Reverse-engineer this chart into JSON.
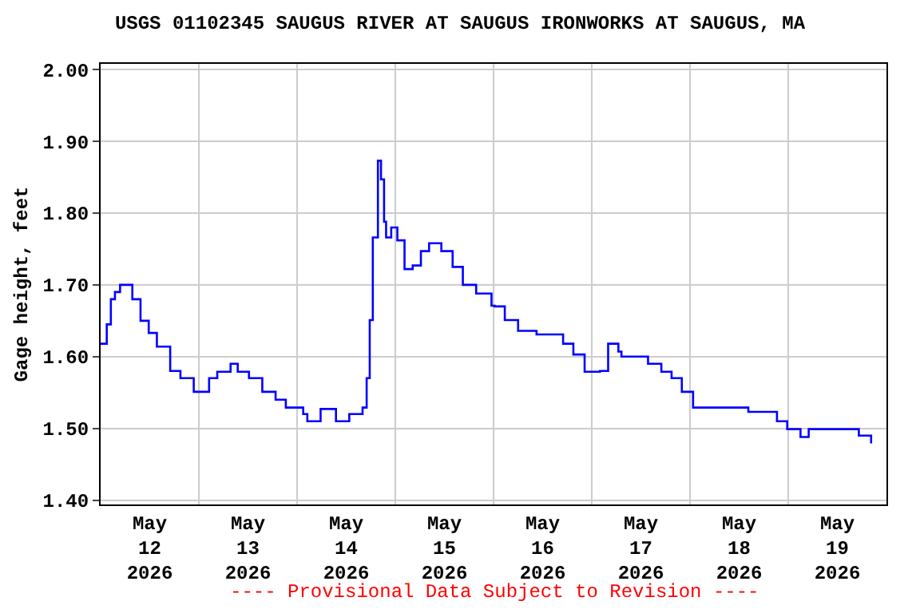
{
  "chart_data": {
    "type": "step",
    "title": "USGS 01102345 SAUGUS RIVER AT SAUGUS IRONWORKS AT SAUGUS, MA",
    "ylabel": "Gage height, feet",
    "annotations": [
      "---- Provisional Data Subject to Revision ----"
    ],
    "x": [
      "2026-05-12T00:00",
      "2026-05-12T01:30",
      "2026-05-12T02:30",
      "2026-05-12T03:30",
      "2026-05-12T04:45",
      "2026-05-12T06:15",
      "2026-05-12T07:45",
      "2026-05-12T09:45",
      "2026-05-12T11:45",
      "2026-05-12T13:45",
      "2026-05-12T17:00",
      "2026-05-12T19:30",
      "2026-05-12T22:45",
      "2026-05-13T02:30",
      "2026-05-13T04:30",
      "2026-05-13T07:45",
      "2026-05-13T09:30",
      "2026-05-13T12:15",
      "2026-05-13T15:30",
      "2026-05-13T18:45",
      "2026-05-13T21:15",
      "2026-05-14T01:30",
      "2026-05-14T02:30",
      "2026-05-14T05:45",
      "2026-05-14T09:30",
      "2026-05-14T12:45",
      "2026-05-14T16:00",
      "2026-05-14T17:00",
      "2026-05-14T17:45",
      "2026-05-14T18:30",
      "2026-05-14T19:45",
      "2026-05-14T20:30",
      "2026-05-14T21:15",
      "2026-05-14T21:45",
      "2026-05-14T23:00",
      "2026-05-15T00:30",
      "2026-05-15T02:15",
      "2026-05-15T04:15",
      "2026-05-15T06:15",
      "2026-05-15T08:15",
      "2026-05-15T11:15",
      "2026-05-15T14:00",
      "2026-05-15T16:30",
      "2026-05-15T19:45",
      "2026-05-15T23:30",
      "2026-05-16T00:15",
      "2026-05-16T02:45",
      "2026-05-16T06:00",
      "2026-05-16T10:30",
      "2026-05-16T15:00",
      "2026-05-16T17:00",
      "2026-05-16T19:30",
      "2026-05-16T22:15",
      "2026-05-17T02:00",
      "2026-05-17T04:00",
      "2026-05-17T06:30",
      "2026-05-17T07:15",
      "2026-05-17T11:00",
      "2026-05-17T13:45",
      "2026-05-17T17:00",
      "2026-05-17T19:30",
      "2026-05-17T22:00",
      "2026-05-18T00:45",
      "2026-05-18T07:45",
      "2026-05-18T14:15",
      "2026-05-18T21:15",
      "2026-05-18T23:45",
      "2026-05-19T03:00",
      "2026-05-19T05:00",
      "2026-05-19T10:15",
      "2026-05-19T15:30",
      "2026-05-19T17:15",
      "2026-05-19T20:15"
    ],
    "series": [
      {
        "color": "#0000ff",
        "values": [
          1.618,
          1.645,
          1.68,
          1.69,
          1.7,
          1.7,
          1.68,
          1.65,
          1.633,
          1.614,
          1.58,
          1.57,
          1.551,
          1.57,
          1.579,
          1.59,
          1.579,
          1.57,
          1.551,
          1.54,
          1.529,
          1.52,
          1.51,
          1.527,
          1.51,
          1.52,
          1.529,
          1.57,
          1.651,
          1.766,
          1.873,
          1.847,
          1.788,
          1.766,
          1.78,
          1.762,
          1.722,
          1.727,
          1.747,
          1.758,
          1.747,
          1.725,
          1.7,
          1.688,
          1.671,
          1.67,
          1.651,
          1.636,
          1.631,
          1.631,
          1.618,
          1.603,
          1.579,
          1.58,
          1.618,
          1.607,
          1.6,
          1.6,
          1.59,
          1.579,
          1.57,
          1.551,
          1.529,
          1.529,
          1.523,
          1.51,
          1.499,
          1.488,
          1.499,
          1.499,
          1.499,
          1.49,
          1.479
        ]
      }
    ],
    "xlim": [
      "2026-05-12T00:00",
      "2026-05-20T00:00"
    ],
    "xticks": [
      {
        "value": "2026-05-12T12:00",
        "label": "May\n12\n2026"
      },
      {
        "value": "2026-05-13T12:00",
        "label": "May\n13\n2026"
      },
      {
        "value": "2026-05-14T12:00",
        "label": "May\n14\n2026"
      },
      {
        "value": "2026-05-15T12:00",
        "label": "May\n15\n2026"
      },
      {
        "value": "2026-05-16T12:00",
        "label": "May\n16\n2026"
      },
      {
        "value": "2026-05-17T12:00",
        "label": "May\n17\n2026"
      },
      {
        "value": "2026-05-18T12:00",
        "label": "May\n18\n2026"
      },
      {
        "value": "2026-05-19T12:00",
        "label": "May\n19\n2026"
      },
      {
        "value": "2026-05-13T00:00",
        "label": null
      },
      {
        "value": "2026-05-14T00:00",
        "label": null
      },
      {
        "value": "2026-05-15T00:00",
        "label": null
      },
      {
        "value": "2026-05-16T00:00",
        "label": null
      },
      {
        "value": "2026-05-17T00:00",
        "label": null
      },
      {
        "value": "2026-05-18T00:00",
        "label": null
      },
      {
        "value": "2026-05-19T00:00",
        "label": null
      }
    ],
    "ylim": [
      1.394,
      2.008
    ],
    "yticks": [
      {
        "value": 1.4,
        "label": "1.40"
      },
      {
        "value": 1.5,
        "label": "1.50"
      },
      {
        "value": 1.6,
        "label": "1.60"
      },
      {
        "value": 1.7,
        "label": "1.70"
      },
      {
        "value": 1.8,
        "label": "1.80"
      },
      {
        "value": 1.9,
        "label": "1.90"
      },
      {
        "value": 2.0,
        "label": "2.00"
      }
    ],
    "grid": true
  }
}
